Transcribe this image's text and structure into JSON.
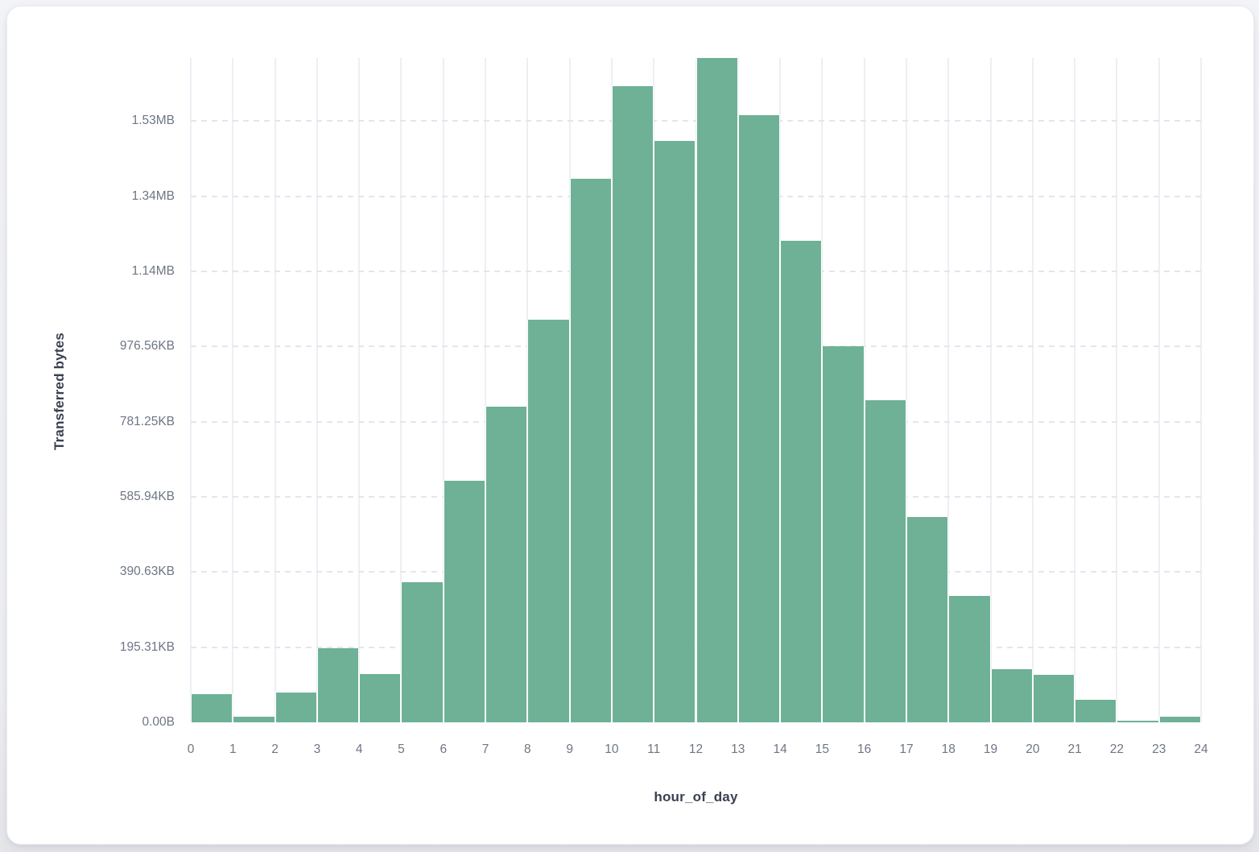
{
  "card": {
    "background": "#ffffff",
    "border_color": "#e9ebf0"
  },
  "chart_data": {
    "type": "bar",
    "subtype": "histogram",
    "title": "",
    "xlabel": "hour_of_day",
    "ylabel": "Transferred bytes",
    "legend": "none",
    "grid": {
      "vertical": "solid",
      "horizontal": "dashed"
    },
    "bar_color": "#6EB196",
    "x_bin_start_hours": [
      0,
      1,
      2,
      3,
      4,
      5,
      6,
      7,
      8,
      9,
      10,
      11,
      12,
      13,
      14,
      15,
      16,
      17,
      18,
      19,
      20,
      21,
      22,
      23
    ],
    "values_bytes": [
      75000,
      16000,
      80000,
      198000,
      128000,
      372000,
      642000,
      840000,
      1071000,
      1446000,
      1694000,
      1548000,
      1768000,
      1616000,
      1282000,
      1000000,
      858000,
      547000,
      337000,
      142000,
      127000,
      60000,
      5000,
      14000
    ],
    "y_axis_max_bytes": 1768000,
    "y_ticks": [
      {
        "label": "0.00B",
        "bytes": 0
      },
      {
        "label": "195.31KB",
        "bytes": 200000
      },
      {
        "label": "390.63KB",
        "bytes": 400000
      },
      {
        "label": "585.94KB",
        "bytes": 600000
      },
      {
        "label": "781.25KB",
        "bytes": 800000
      },
      {
        "label": "976.56KB",
        "bytes": 1000000
      },
      {
        "label": "1.14MB",
        "bytes": 1200000
      },
      {
        "label": "1.34MB",
        "bytes": 1400000
      },
      {
        "label": "1.53MB",
        "bytes": 1600000
      }
    ],
    "x_ticks": [
      "0",
      "1",
      "2",
      "3",
      "4",
      "5",
      "6",
      "7",
      "8",
      "9",
      "10",
      "11",
      "12",
      "13",
      "14",
      "15",
      "16",
      "17",
      "18",
      "19",
      "20",
      "21",
      "22",
      "23",
      "24"
    ]
  }
}
